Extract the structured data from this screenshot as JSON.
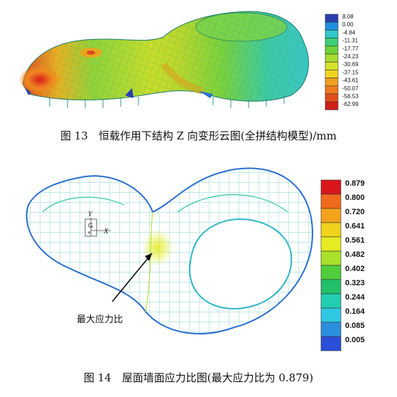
{
  "figure13": {
    "caption": "图 13　恒载作用下结构 Z 向变形云图(全拼结构模型)/mm",
    "legend_values": [
      "8.08",
      "0.00",
      "-4.84",
      "-11.31",
      "-17.77",
      "-24.23",
      "-30.69",
      "-37.15",
      "-43.61",
      "-50.07",
      "-56.53",
      "-62.99"
    ],
    "legend_colors": [
      "#2a3fb0",
      "#1f8fe0",
      "#30c8c8",
      "#3fcf7a",
      "#6fd23a",
      "#a6dc2c",
      "#d6e22a",
      "#f0d420",
      "#f0a020",
      "#ee7a1e",
      "#e24e1a",
      "#d0201a"
    ]
  },
  "figure14": {
    "caption": "图 14　屋面墙面应力比图(最大应力比为 0.879)",
    "annotation": "最大应力比",
    "axis_labels": {
      "y": "Y",
      "g": "G",
      "x": "X",
      "plus": "+"
    },
    "legend_values": [
      "0.879",
      "0.800",
      "0.720",
      "0.641",
      "0.561",
      "0.482",
      "0.402",
      "0.323",
      "0.244",
      "0.164",
      "0.085",
      "0.005"
    ],
    "legend_colors": [
      "#d8161c",
      "#ef6a1c",
      "#f3a21c",
      "#f0d21c",
      "#e6ec22",
      "#a9e02a",
      "#4fcd3a",
      "#22c06a",
      "#22cdb0",
      "#2ec8e2",
      "#2a8fe0",
      "#2a4fd8"
    ]
  }
}
